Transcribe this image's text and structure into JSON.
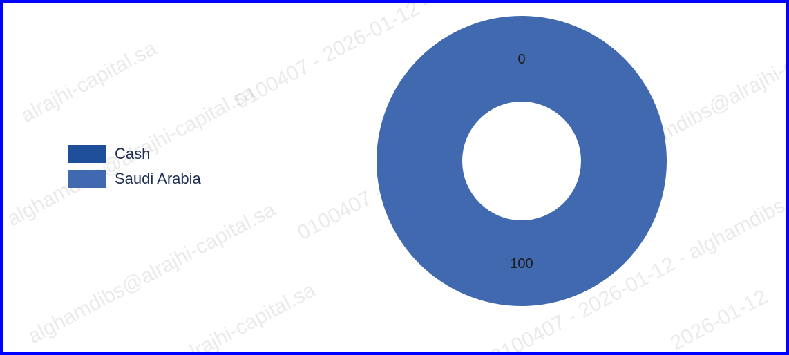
{
  "chart_data": {
    "type": "pie",
    "donut": true,
    "categories": [
      "Cash",
      "Saudi Arabia"
    ],
    "values": [
      0,
      100
    ],
    "colors": [
      "#1f4e9a",
      "#4169b0"
    ],
    "data_labels": [
      "0",
      "100"
    ],
    "legend": {
      "placement": "left",
      "entries": [
        "Cash",
        "Saudi Arabia"
      ]
    }
  },
  "watermark": {
    "texts": [
      "alrajhi-capital.sa",
      "alghamdibs@alrajhi-capital.sa",
      "0100407 - 2026-01-12 - alghamdibs",
      "2026-01-12"
    ]
  }
}
